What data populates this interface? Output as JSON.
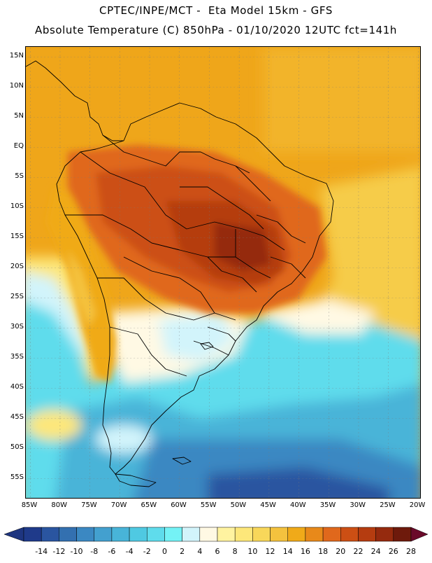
{
  "header": {
    "title_line1": "CPTEC/INPE/MCT -  Eta Model 15km - GFS",
    "title_line2": "Absolute Temperature (C) 850hPa - 01/10/2020 12UTC fct=141h"
  },
  "map": {
    "lat_labels": [
      "15N",
      "10N",
      "5N",
      "EQ",
      "5S",
      "10S",
      "15S",
      "20S",
      "25S",
      "30S",
      "35S",
      "40S",
      "45S",
      "50S",
      "55S"
    ],
    "lon_labels": [
      "85W",
      "80W",
      "75W",
      "70W",
      "65W",
      "60W",
      "55W",
      "50W",
      "45W",
      "40W",
      "35W",
      "30W",
      "25W",
      "20W"
    ]
  },
  "colorbar": {
    "labels": [
      "-14",
      "-12",
      "-10",
      "-8",
      "-6",
      "-4",
      "-2",
      "0",
      "2",
      "4",
      "6",
      "8",
      "10",
      "12",
      "14",
      "16",
      "18",
      "20",
      "22",
      "24",
      "26",
      "28"
    ],
    "colors": [
      "#1f3a8a",
      "#2a55a0",
      "#3370b0",
      "#3b88c2",
      "#43a0cf",
      "#48b4d8",
      "#4fc9e2",
      "#5fdcec",
      "#74f2f6",
      "#d2f4fb",
      "#fff9e4",
      "#fff3a0",
      "#fde77a",
      "#f8d75a",
      "#f4c23e",
      "#f0aa19",
      "#e8891a",
      "#e0681c",
      "#cc4f14",
      "#b53c10",
      "#952a0e",
      "#6e1a0c"
    ],
    "low_arrow_color": "#1e3580",
    "high_arrow_color": "#6a0a2a"
  }
}
